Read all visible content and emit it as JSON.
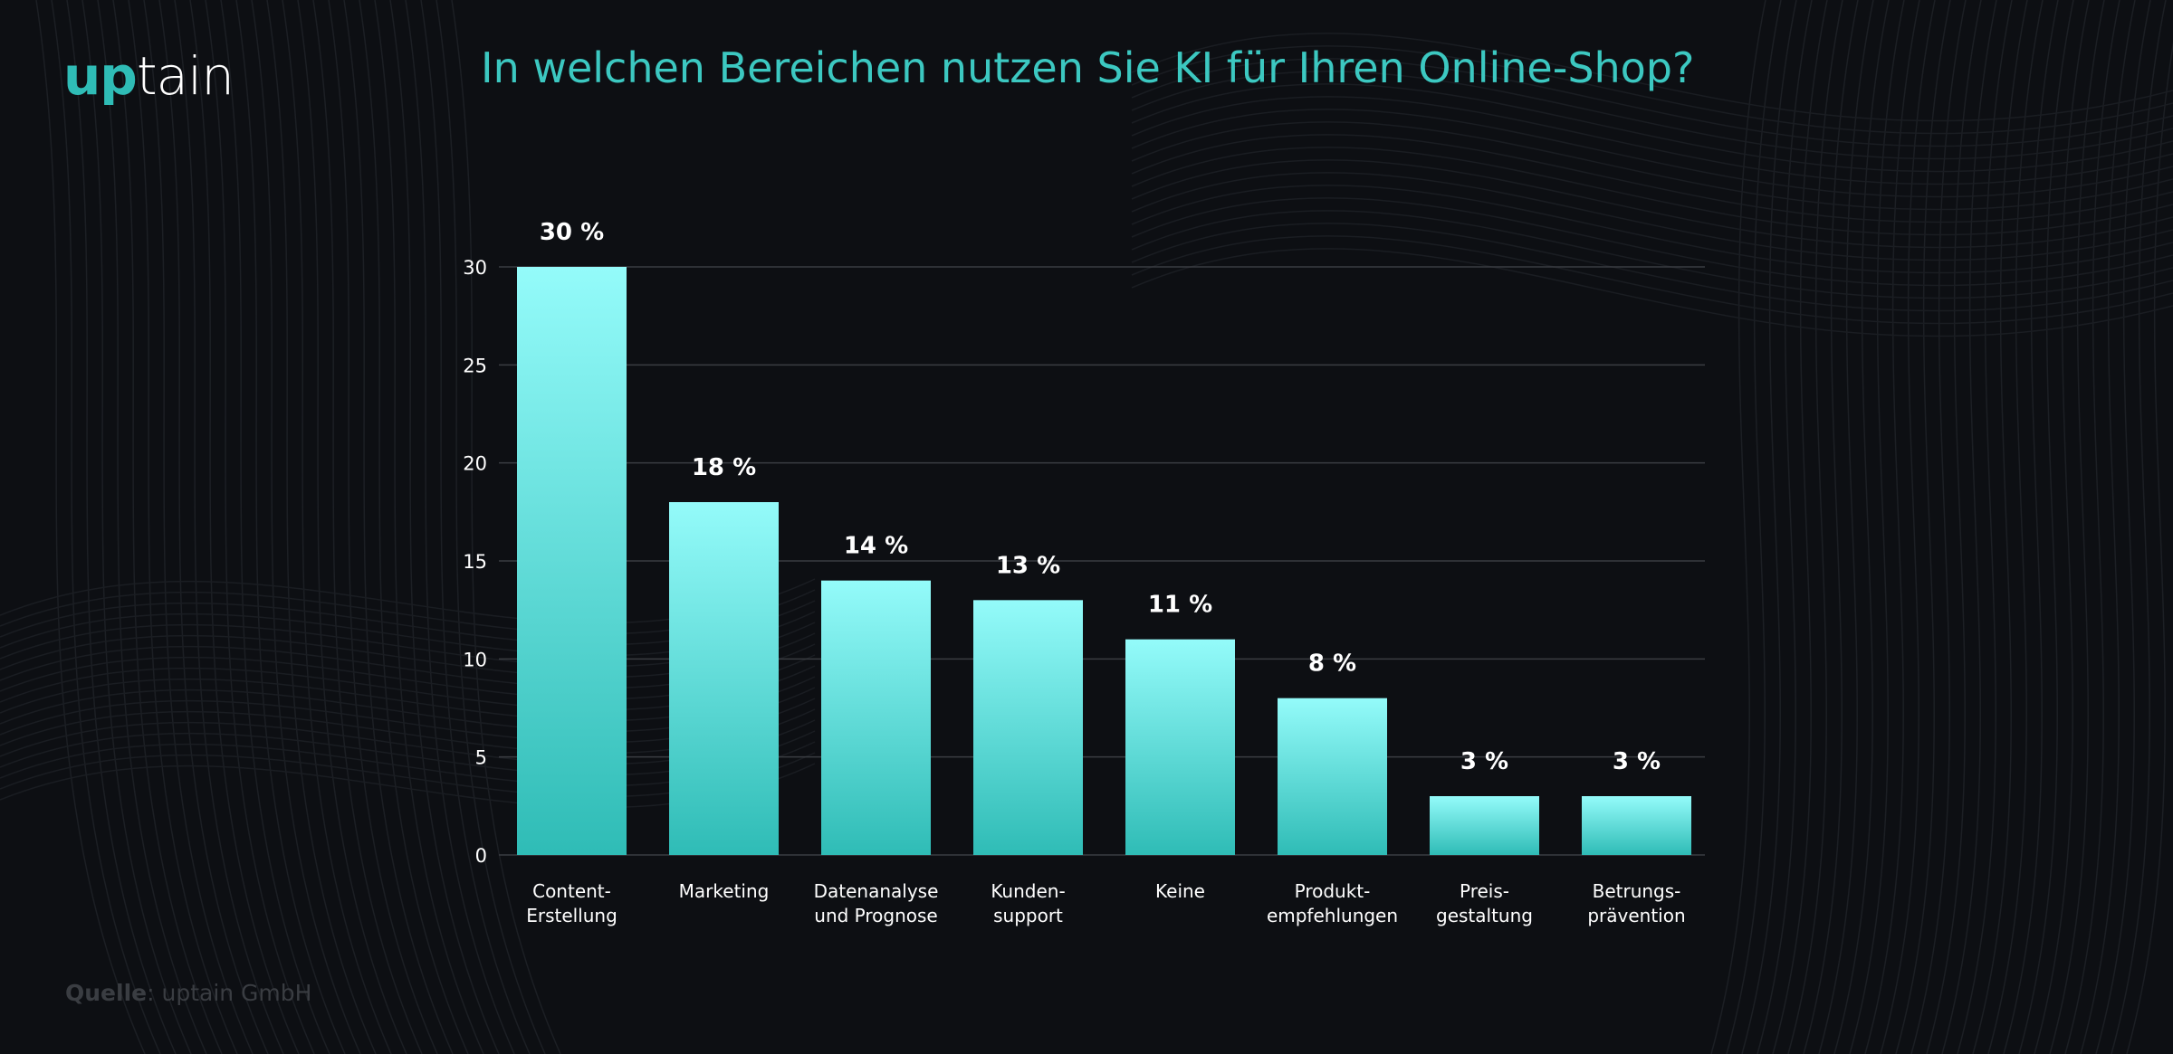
{
  "logo": {
    "part1": "up",
    "part2": "tain",
    "accent": "#2fbcb6"
  },
  "title": "In welchen Bereichen nutzen Sie KI für Ihren Online-Shop?",
  "source": {
    "label": "Quelle",
    "separator": ": ",
    "value": "uptain GmbH"
  },
  "chart_data": {
    "type": "bar",
    "title": "In welchen Bereichen nutzen Sie KI für Ihren Online-Shop?",
    "categories": [
      [
        "Content-",
        "Erstellung"
      ],
      [
        "Marketing"
      ],
      [
        "Datenanalyse",
        "und Prognose"
      ],
      [
        "Kunden-",
        "support"
      ],
      [
        "Keine"
      ],
      [
        "Produkt-",
        "empfehlungen"
      ],
      [
        "Preis-",
        "gestaltung"
      ],
      [
        "Betrungs-",
        "prävention"
      ]
    ],
    "values": [
      30,
      18,
      14,
      13,
      11,
      8,
      3,
      3
    ],
    "data_labels": [
      "30 %",
      "18 %",
      "14 %",
      "13 %",
      "11 %",
      "8 %",
      "3 %",
      "3 %"
    ],
    "yticks": [
      0,
      5,
      10,
      15,
      20,
      25,
      30
    ],
    "ylim": [
      0,
      30
    ],
    "grid": true,
    "xlabel": "",
    "ylabel": "",
    "colors": {
      "bar_top": "#94fbfa",
      "bar_bottom": "#2fbcb6",
      "grid": "#3a3d42",
      "text": "#ffffff"
    }
  }
}
